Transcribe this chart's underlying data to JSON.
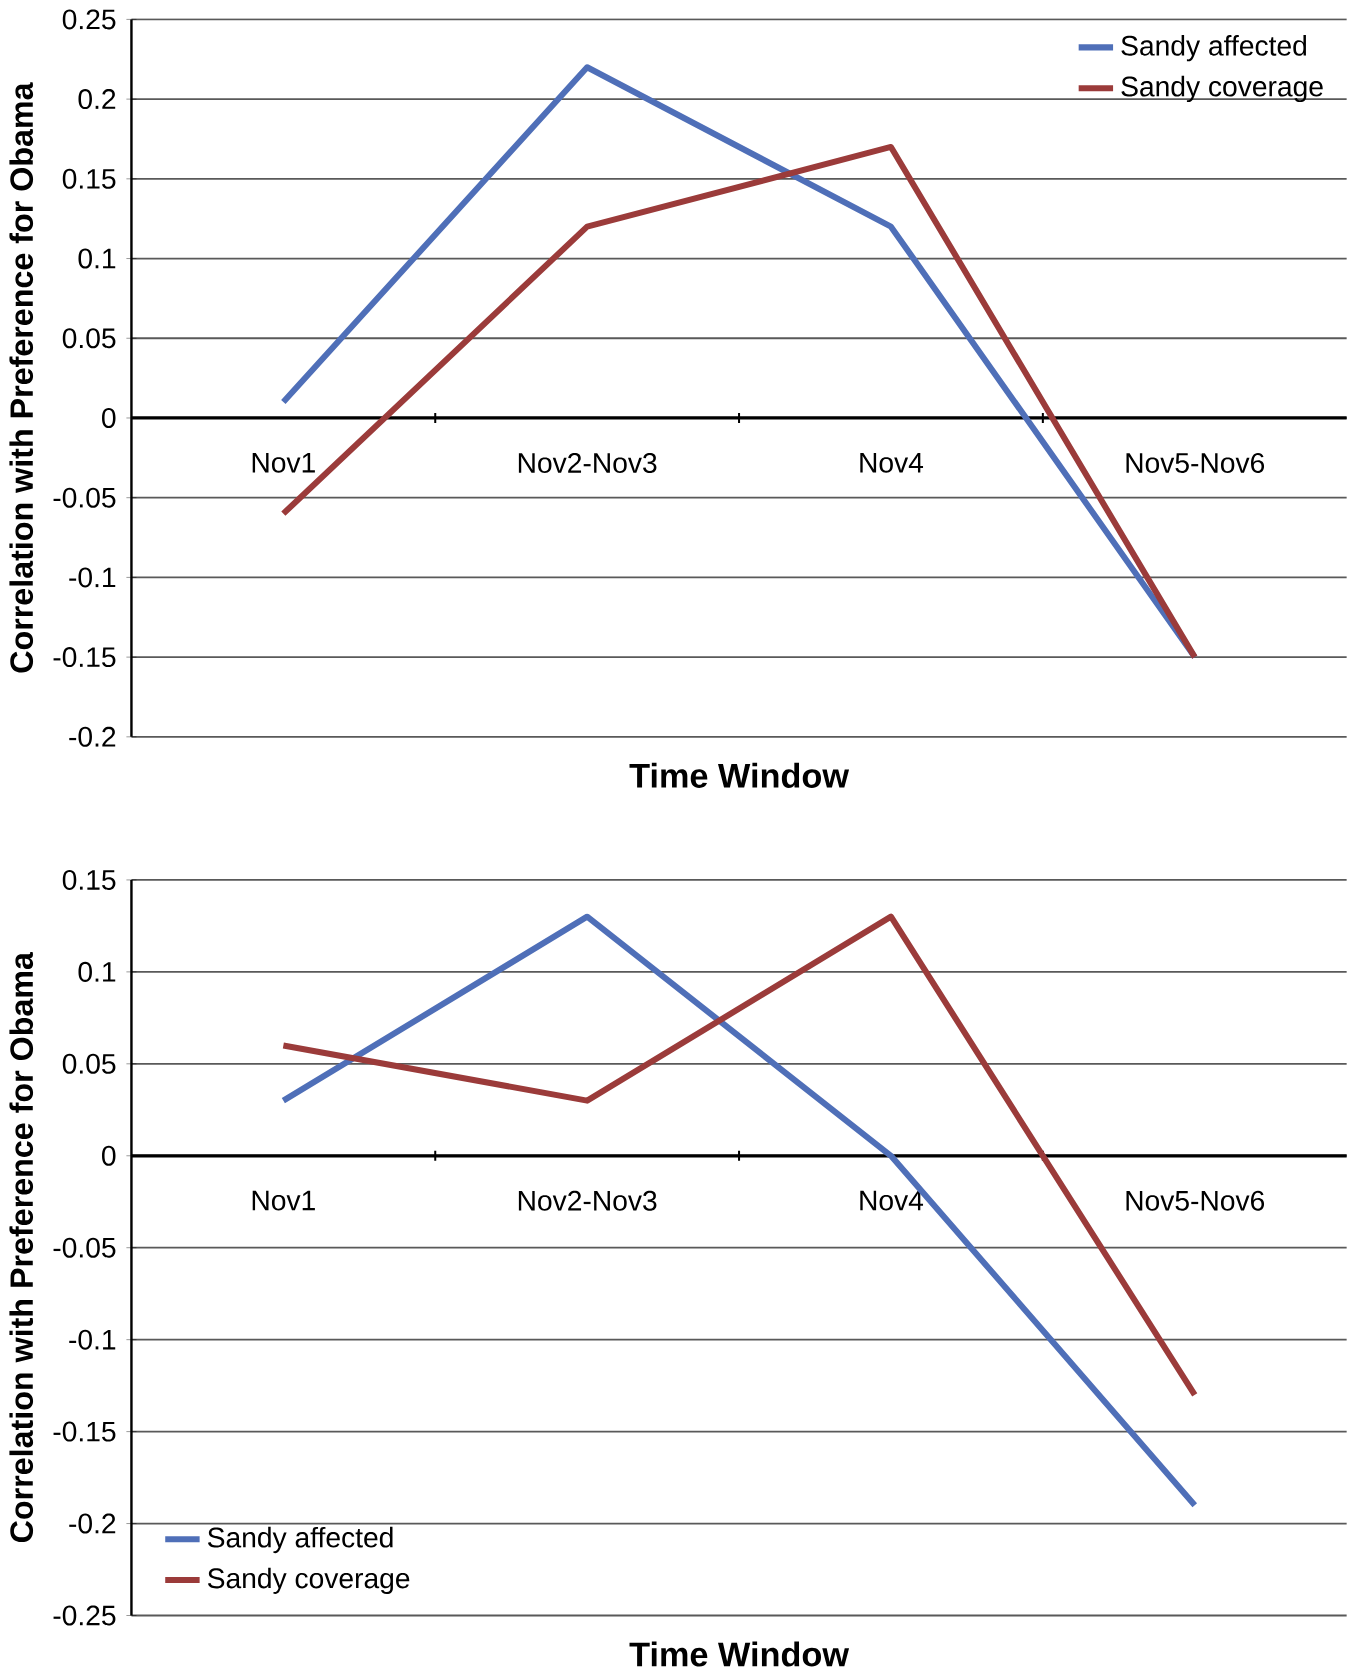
{
  "chart_data": [
    {
      "type": "line",
      "xlabel": "Time Window",
      "ylabel": "Correlation with Preference for Obama",
      "categories": [
        "Nov1",
        "Nov2-Nov3",
        "Nov4",
        "Nov5-Nov6"
      ],
      "series": [
        {
          "name": "Sandy affected",
          "color": "#4f6fb8",
          "values": [
            0.01,
            0.22,
            0.12,
            -0.15
          ]
        },
        {
          "name": "Sandy coverage",
          "color": "#9b3b3a",
          "values": [
            -0.06,
            0.12,
            0.17,
            -0.15
          ]
        }
      ],
      "ylim": [
        -0.2,
        0.25
      ],
      "yticks": [
        -0.2,
        -0.15,
        -0.1,
        -0.05,
        0,
        0.05,
        0.1,
        0.15,
        0.2,
        0.25
      ],
      "grid": "y",
      "legend": "top right"
    },
    {
      "type": "line",
      "xlabel": "Time Window",
      "ylabel": "Correlation with Preference for Obama",
      "categories": [
        "Nov1",
        "Nov2-Nov3",
        "Nov4",
        "Nov5-Nov6"
      ],
      "series": [
        {
          "name": "Sandy affected",
          "color": "#4f6fb8",
          "values": [
            0.03,
            0.13,
            0.0,
            -0.19
          ]
        },
        {
          "name": "Sandy coverage",
          "color": "#9b3b3a",
          "values": [
            0.06,
            0.03,
            0.13,
            -0.13
          ]
        }
      ],
      "ylim": [
        -0.25,
        0.15
      ],
      "yticks": [
        -0.25,
        -0.2,
        -0.15,
        -0.1,
        -0.05,
        0,
        0.05,
        0.1,
        0.15
      ],
      "grid": "y",
      "legend": "bottom left"
    }
  ]
}
